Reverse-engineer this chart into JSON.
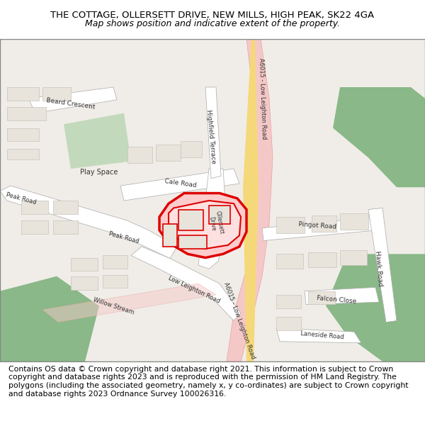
{
  "title_line1": "THE COTTAGE, OLLERSETT DRIVE, NEW MILLS, HIGH PEAK, SK22 4GA",
  "title_line2": "Map shows position and indicative extent of the property.",
  "footer_text": "Contains OS data © Crown copyright and database right 2021. This information is subject to Crown copyright and database rights 2023 and is reproduced with the permission of HM Land Registry. The polygons (including the associated geometry, namely x, y co-ordinates) are subject to Crown copyright and database rights 2023 Ordnance Survey 100026316.",
  "title_fontsize": 9.5,
  "footer_fontsize": 7.8,
  "map_bg": "#f0ede8",
  "road_main_color": "#f5c8c8",
  "road_main_edge": "#e8a0a0",
  "road_yellow": "#f5d87a",
  "road_white": "#ffffff",
  "road_edge": "#cccccc",
  "building_fill": "#e8e4dc",
  "building_edge": "#c8c4bc",
  "green_areas": "#b8d4b0",
  "dark_green": "#8ab888",
  "highlight_red": "#dd0000",
  "text_color": "#333333",
  "fig_width": 6.0,
  "fig_height": 6.25,
  "dpi": 100
}
